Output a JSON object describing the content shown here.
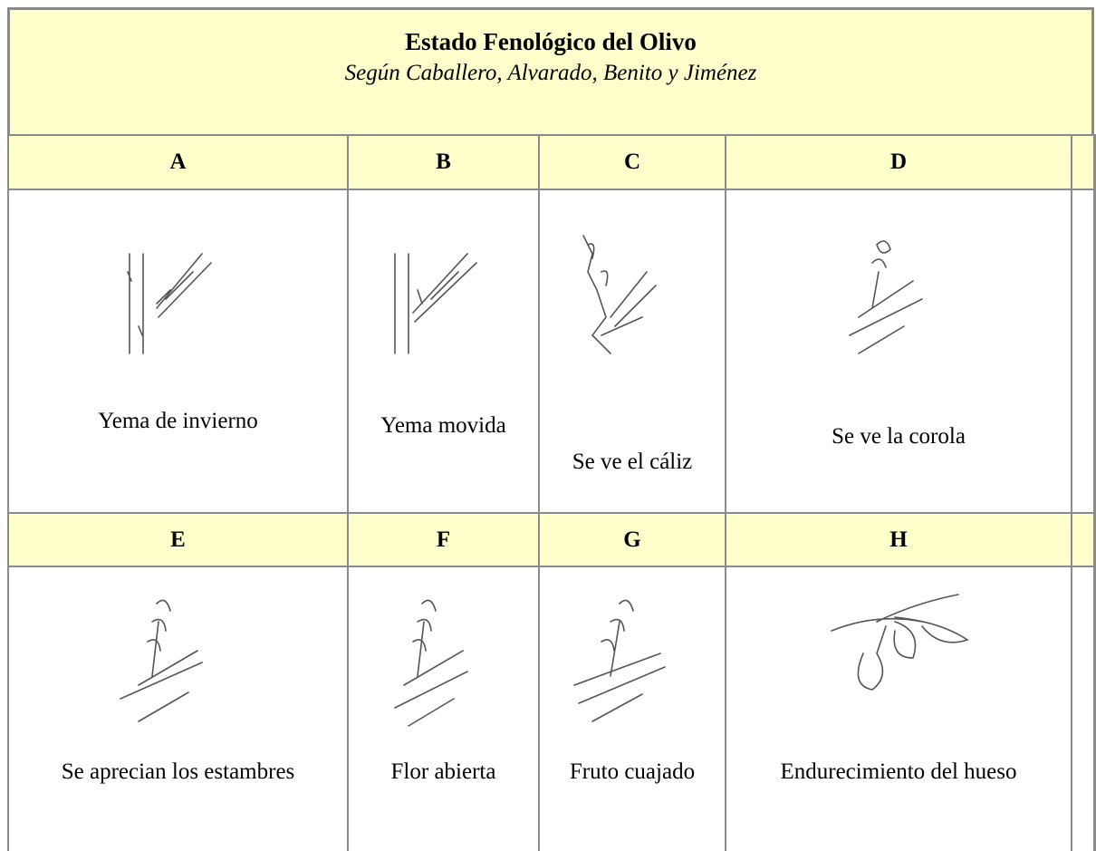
{
  "header": {
    "title": "Estado Fenológico del Olivo",
    "subtitle": "Según Caballero, Alvarado, Benito y Jiménez"
  },
  "table": {
    "rows": [
      [
        "A",
        "B",
        "C",
        "D"
      ],
      [
        "Yema de invierno",
        "Yema movida",
        "Se ve el cáliz",
        "Se ve la corola"
      ],
      [
        "E",
        "F",
        "G",
        "H"
      ],
      [
        "Se aprecian los estambres",
        "Flor abierta",
        "Fruto cuajado",
        "Endurecimiento del hueso"
      ]
    ]
  }
}
